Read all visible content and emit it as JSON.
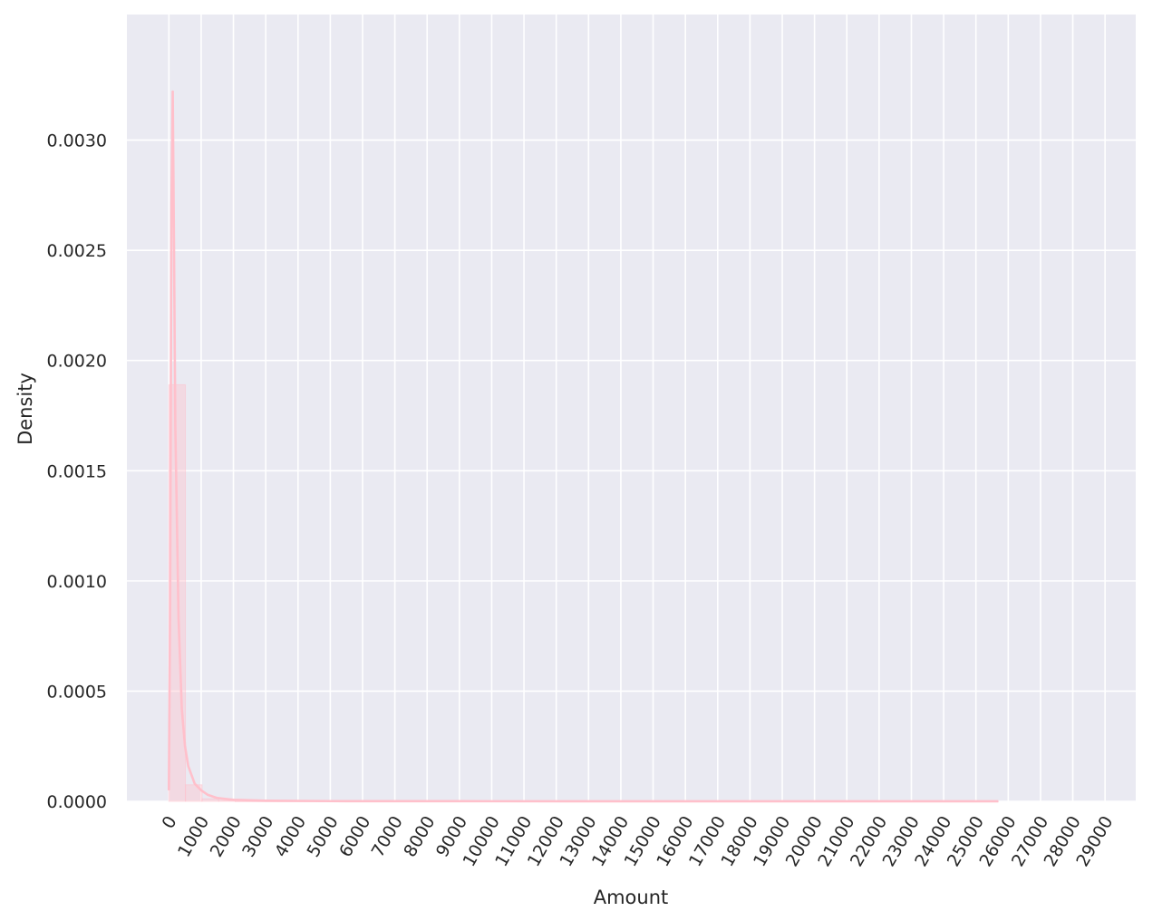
{
  "chart_data": {
    "type": "histogram",
    "xlabel": "Amount",
    "ylabel": "Density",
    "xlim": [
      -1300,
      29950
    ],
    "ylim": [
      0,
      0.00357
    ],
    "grid": true,
    "colors": {
      "background": "#eaeaf2",
      "grid": "#ffffff",
      "hist_fill": "#ffc0cb",
      "kde_line": "#ffc0cb"
    },
    "x_ticks": [
      0,
      1000,
      2000,
      3000,
      4000,
      5000,
      6000,
      7000,
      8000,
      9000,
      10000,
      11000,
      12000,
      13000,
      14000,
      15000,
      16000,
      17000,
      18000,
      19000,
      20000,
      21000,
      22000,
      23000,
      24000,
      25000,
      26000,
      27000,
      28000,
      29000
    ],
    "x_tick_labels": [
      "0",
      "1000",
      "2000",
      "3000",
      "4000",
      "5000",
      "6000",
      "7000",
      "8000",
      "9000",
      "10000",
      "11000",
      "12000",
      "13000",
      "14000",
      "15000",
      "16000",
      "17000",
      "18000",
      "19000",
      "20000",
      "21000",
      "22000",
      "23000",
      "24000",
      "25000",
      "26000",
      "27000",
      "28000",
      "29000"
    ],
    "y_ticks": [
      0,
      0.0005,
      0.001,
      0.0015,
      0.002,
      0.0025,
      0.003
    ],
    "y_tick_labels": [
      "0.0000",
      "0.0005",
      "0.0010",
      "0.0015",
      "0.0020",
      "0.0025",
      "0.0030"
    ],
    "bins": [
      {
        "x0": 0,
        "x1": 514,
        "density": 0.00189
      },
      {
        "x0": 514,
        "x1": 1028,
        "density": 7.5e-05
      },
      {
        "x0": 1028,
        "x1": 1542,
        "density": 1.2e-05
      },
      {
        "x0": 1542,
        "x1": 2056,
        "density": 4e-06
      },
      {
        "x0": 2056,
        "x1": 25691,
        "density": 8e-07
      }
    ],
    "kde": {
      "x": [
        0,
        40,
        80,
        120,
        160,
        200,
        300,
        400,
        500,
        600,
        800,
        1000,
        1200,
        1500,
        2000,
        3000,
        5000,
        10000,
        15000,
        20000,
        25691
      ],
      "y": [
        5e-05,
        0.0009,
        0.0027,
        0.00322,
        0.0025,
        0.0017,
        0.00083,
        0.00042,
        0.00025,
        0.00016,
        8e-05,
        5e-05,
        3e-05,
        1.5e-05,
        7e-06,
        3e-06,
        1e-06,
        5e-07,
        3e-07,
        2e-07,
        1e-07
      ]
    }
  }
}
